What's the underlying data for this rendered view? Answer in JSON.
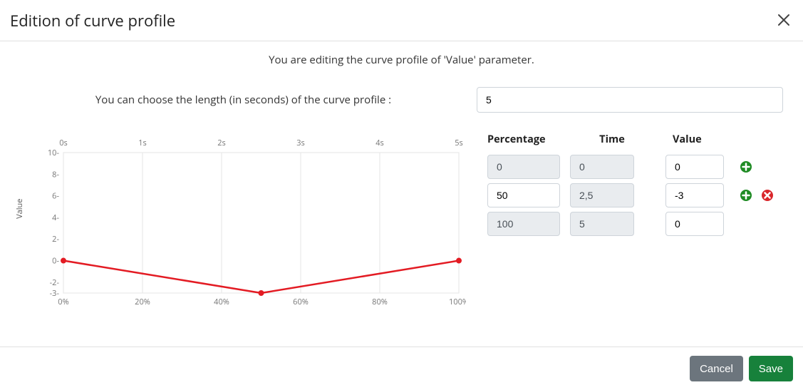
{
  "header": {
    "title": "Edition of curve profile"
  },
  "subtitle": "You are editing the curve profile of 'Value' parameter.",
  "length": {
    "label": "You can choose the length (in seconds) of the curve profile :",
    "value": "5"
  },
  "chart": {
    "type": "line",
    "y_axis_title": "Value",
    "line_color": "#e31b23",
    "line_width": 2.5,
    "marker_size": 4,
    "background_color": "#ffffff",
    "grid_color": "#e5e5e5",
    "axis_label_color": "#777777",
    "axis_label_fontsize": 11,
    "x_top": {
      "ticks": [
        0,
        1,
        2,
        3,
        4,
        5
      ],
      "labels": [
        "0s",
        "1s",
        "2s",
        "3s",
        "4s",
        "5s"
      ]
    },
    "x_bottom": {
      "ticks": [
        0,
        20,
        40,
        60,
        80,
        100
      ],
      "labels": [
        "0%",
        "20%",
        "40%",
        "60%",
        "80%",
        "100%"
      ]
    },
    "y": {
      "min": -3,
      "max": 10,
      "ticks": [
        -3,
        -2,
        0,
        2,
        4,
        6,
        8,
        10
      ],
      "labels": [
        "-3-",
        "-2-",
        "0-",
        "2-",
        "4-",
        "6-",
        "8-",
        "10-"
      ]
    },
    "data": {
      "x_percent": [
        0,
        50,
        100
      ],
      "y_value": [
        0,
        -3,
        0
      ]
    }
  },
  "table": {
    "headers": {
      "percentage": "Percentage",
      "time": "Time",
      "value": "Value"
    },
    "rows": [
      {
        "percentage": "0",
        "time": "0",
        "value": "0",
        "percentage_readonly": true,
        "time_readonly": true,
        "value_readonly": false,
        "show_add": true,
        "show_remove": false
      },
      {
        "percentage": "50",
        "time": "2,5",
        "value": "-3",
        "percentage_readonly": false,
        "time_readonly": true,
        "value_readonly": false,
        "show_add": true,
        "show_remove": true
      },
      {
        "percentage": "100",
        "time": "5",
        "value": "0",
        "percentage_readonly": true,
        "time_readonly": true,
        "value_readonly": false,
        "show_add": false,
        "show_remove": false
      }
    ]
  },
  "icons": {
    "add_color": "#1f8b24",
    "remove_color": "#d9262b"
  },
  "footer": {
    "cancel": "Cancel",
    "save": "Save",
    "cancel_bg": "#6c757d",
    "save_bg": "#17813b"
  }
}
